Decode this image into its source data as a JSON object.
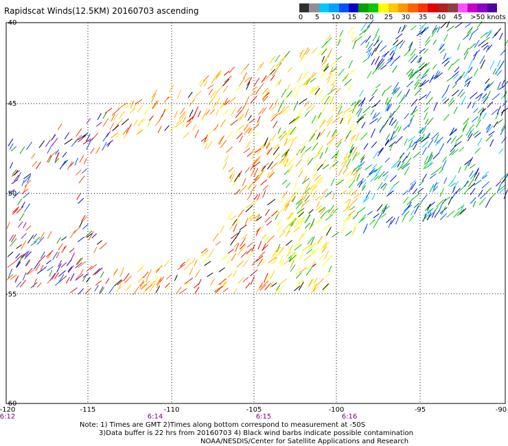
{
  "title": "Rapidscat Winds(12.5KM) 20160703 ascending",
  "legend": {
    "labels": [
      "0",
      "5",
      "10",
      "15",
      "20",
      "25",
      "30",
      "35",
      "40",
      "45",
      ">50 knots"
    ],
    "colors": [
      "#303030",
      "#909090",
      "#00c8ff",
      "#00a0ff",
      "#0050ff",
      "#0000c8",
      "#00a000",
      "#00c800",
      "#ffff00",
      "#ffc800",
      "#ff9600",
      "#ff6400",
      "#ff3200",
      "#e00000",
      "#b42020",
      "#8c4040",
      "#ff50ff",
      "#c800c8",
      "#8c00c8",
      "#5000a0"
    ]
  },
  "axes": {
    "x_ticks": [
      "-120",
      "-115",
      "-110",
      "-105",
      "-100",
      "-95",
      "-90"
    ],
    "y_ticks": [
      "-40",
      "-45",
      "-50",
      "-55",
      "-60"
    ],
    "times": [
      "6:12",
      "6:14",
      "6:15",
      "6:16"
    ]
  },
  "notes": {
    "line1": "Note: 1) Times are GMT 2)Times along bottom correspond to measurement at -50S",
    "line2": "3)Data buffer is 22 hrs from 20160703 4) Black wind barbs indicate possible contamination",
    "line3": "NOAA/NESDIS/Center for Satellite Applications and Research"
  }
}
